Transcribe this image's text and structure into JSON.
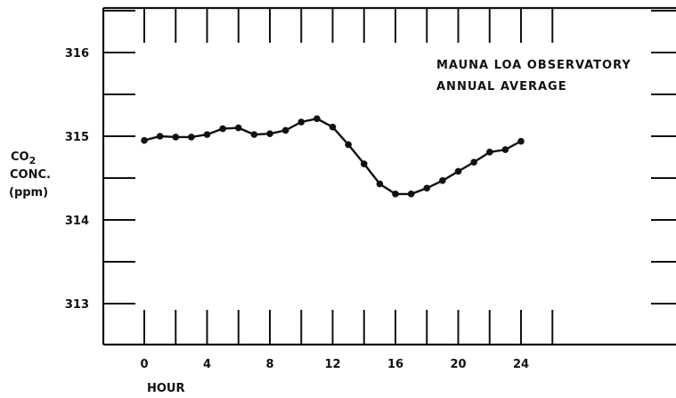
{
  "chart_data": {
    "type": "line",
    "annotation": [
      "MAUNA LOA OBSERVATORY",
      "ANNUAL AVERAGE"
    ],
    "xlabel": "HOUR",
    "ylabel": [
      "CO",
      "2",
      "CONC.",
      "(ppm)"
    ],
    "xlim": [
      -1,
      25.5
    ],
    "ylim": [
      312.5,
      316.5
    ],
    "x_ticks": [
      0,
      4,
      8,
      12,
      16,
      20,
      24
    ],
    "y_ticks": [
      313,
      314,
      315,
      316
    ],
    "grid": false,
    "series": [
      {
        "x": [
          0,
          1,
          2,
          3,
          4,
          5,
          6,
          7,
          8,
          9,
          10,
          11,
          12,
          13,
          14,
          15,
          16,
          17,
          18,
          19,
          20,
          21,
          22,
          23,
          24
        ],
        "values": [
          314.95,
          315.0,
          314.99,
          314.99,
          315.02,
          315.09,
          315.1,
          315.02,
          315.03,
          315.07,
          315.17,
          315.21,
          315.11,
          314.9,
          314.67,
          314.43,
          314.31,
          314.31,
          314.38,
          314.47,
          314.58,
          314.69,
          314.81,
          314.84,
          314.94
        ]
      }
    ]
  }
}
